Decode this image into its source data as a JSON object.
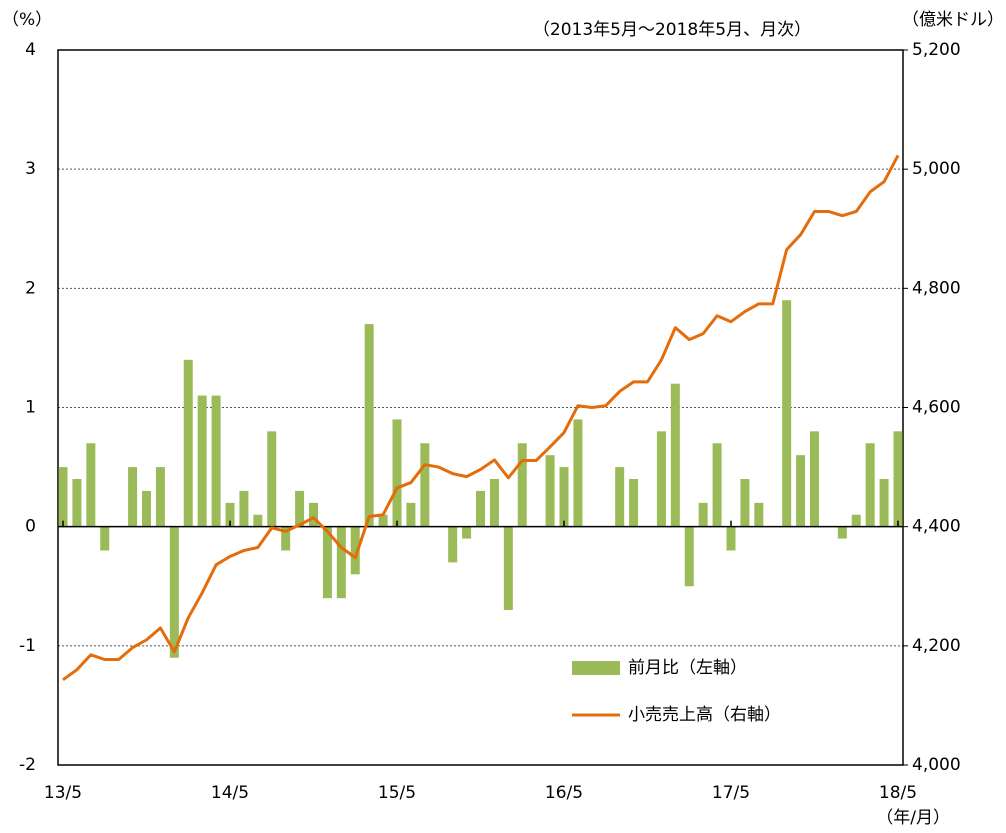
{
  "chart_data": {
    "type": "bar",
    "subtitle": "（2013年5月～2018年5月、月次）",
    "y_label": "（%）",
    "y2_label": "（億米ドル）",
    "x_label": "（年/月）",
    "categories": [
      "13/5",
      null,
      null,
      null,
      null,
      null,
      null,
      null,
      null,
      null,
      null,
      null,
      "14/5",
      null,
      null,
      null,
      null,
      null,
      null,
      null,
      null,
      null,
      null,
      null,
      "15/5",
      null,
      null,
      null,
      null,
      null,
      null,
      null,
      null,
      null,
      null,
      null,
      "16/5",
      null,
      null,
      null,
      null,
      null,
      null,
      null,
      null,
      null,
      null,
      null,
      "17/5",
      null,
      null,
      null,
      null,
      null,
      null,
      null,
      null,
      null,
      null,
      null,
      "18/5"
    ],
    "series": [
      {
        "name": "前月比（左軸）",
        "type": "bar",
        "color": "#9bbb59",
        "values": [
          0.5,
          0.4,
          0.7,
          -0.2,
          0,
          0.5,
          0.3,
          0.5,
          -1.1,
          1.4,
          1.1,
          1.1,
          0.2,
          0.3,
          0.1,
          0.8,
          -0.2,
          0.3,
          0.2,
          -0.6,
          -0.6,
          -0.4,
          1.7,
          0.1,
          0.9,
          0.2,
          0.7,
          0,
          -0.3,
          -0.1,
          0.3,
          0.4,
          -0.7,
          0.7,
          0,
          0.6,
          0.5,
          0.9,
          0,
          0,
          0.5,
          0.4,
          0,
          0.8,
          1.2,
          -0.5,
          0.2,
          0.7,
          -0.2,
          0.4,
          0.2,
          0,
          1.9,
          0.6,
          0.8,
          0,
          -0.1,
          0.1,
          0.7,
          0.4,
          0.8
        ]
      },
      {
        "name": "小売売上高（右軸）",
        "type": "line",
        "axis": "y2",
        "color": "#e46c0a",
        "values": [
          4143,
          4160,
          4185,
          4177,
          4177,
          4197,
          4210,
          4230,
          4190,
          4247,
          4289,
          4336,
          4350,
          4360,
          4365,
          4398,
          4392,
          4403,
          4415,
          4392,
          4365,
          4348,
          4417,
          4420,
          4465,
          4474,
          4504,
          4500,
          4489,
          4484,
          4496,
          4512,
          4482,
          4511,
          4511,
          4534,
          4558,
          4603,
          4600,
          4603,
          4627,
          4643,
          4643,
          4680,
          4734,
          4714,
          4724,
          4754,
          4744,
          4761,
          4774,
          4774,
          4865,
          4890,
          4929,
          4929,
          4922,
          4929,
          4962,
          4979,
          5023
        ]
      }
    ],
    "ylim": [
      -2,
      4
    ],
    "yticks": [
      -2,
      -1,
      0,
      1,
      2,
      3,
      4
    ],
    "y2lim": [
      4000,
      5200
    ],
    "y2ticks": [
      {
        "value": 4000,
        "label": "4,000"
      },
      {
        "value": 4200,
        "label": "4,200"
      },
      {
        "value": 4400,
        "label": "4,400"
      },
      {
        "value": 4600,
        "label": "4,600"
      },
      {
        "value": 4800,
        "label": "4,800"
      },
      {
        "value": 5000,
        "label": "5,000"
      },
      {
        "value": 5200,
        "label": "5,200"
      }
    ],
    "grid": true
  }
}
